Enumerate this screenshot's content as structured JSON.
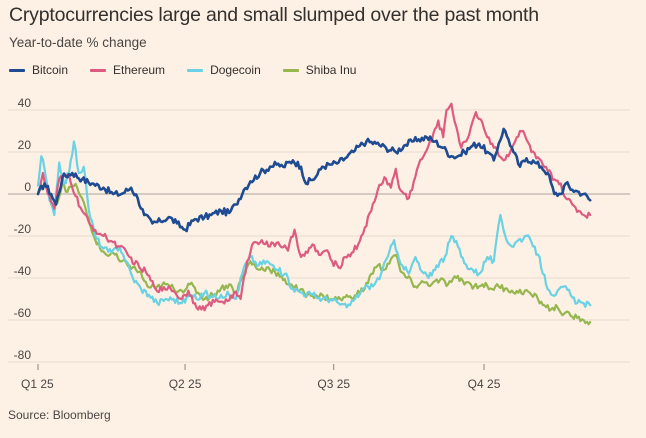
{
  "title": "Cryptocurrencies large and small slumped over the past month",
  "subtitle": "Year-to-date % change",
  "source": "Source: Bloomberg",
  "chart_data": {
    "type": "line",
    "title": "Cryptocurrencies large and small slumped over the past month",
    "ylabel": "Year-to-date % change",
    "ylim": [
      -80,
      40
    ],
    "xlim_days": [
      0,
      355
    ],
    "yticks": [
      40,
      20,
      0,
      -20,
      -40,
      -60,
      -80
    ],
    "xticks": [
      {
        "label": "Q1 25",
        "day": 0
      },
      {
        "label": "Q2 25",
        "day": 90
      },
      {
        "label": "Q3 25",
        "day": 181
      },
      {
        "label": "Q4 25",
        "day": 273
      }
    ],
    "grid": true,
    "legend_position": "top-left",
    "series": [
      {
        "name": "Bitcoin",
        "color": "#1e4b91",
        "points": [
          [
            0,
            0
          ],
          [
            4,
            5
          ],
          [
            8,
            0
          ],
          [
            11,
            -5
          ],
          [
            15,
            8
          ],
          [
            21,
            10
          ],
          [
            27,
            7
          ],
          [
            33,
            5
          ],
          [
            40,
            3
          ],
          [
            46,
            0
          ],
          [
            51,
            0
          ],
          [
            57,
            3
          ],
          [
            61,
            -2
          ],
          [
            65,
            -10
          ],
          [
            70,
            -14
          ],
          [
            75,
            -13
          ],
          [
            80,
            -11
          ],
          [
            85,
            -14
          ],
          [
            90,
            -17
          ],
          [
            96,
            -12
          ],
          [
            102,
            -11
          ],
          [
            106,
            -10
          ],
          [
            112,
            -8
          ],
          [
            117,
            -9
          ],
          [
            121,
            -5
          ],
          [
            126,
            2
          ],
          [
            130,
            6
          ],
          [
            136,
            10
          ],
          [
            142,
            13
          ],
          [
            146,
            14
          ],
          [
            150,
            13
          ],
          [
            156,
            16
          ],
          [
            161,
            13
          ],
          [
            164,
            5
          ],
          [
            170,
            8
          ],
          [
            174,
            13
          ],
          [
            179,
            14
          ],
          [
            184,
            15
          ],
          [
            188,
            17
          ],
          [
            193,
            20
          ],
          [
            197,
            23
          ],
          [
            201,
            25
          ],
          [
            207,
            24
          ],
          [
            213,
            22
          ],
          [
            219,
            20
          ],
          [
            224,
            23
          ],
          [
            229,
            25
          ],
          [
            233,
            26
          ],
          [
            238,
            27
          ],
          [
            243,
            25
          ],
          [
            248,
            22
          ],
          [
            253,
            18
          ],
          [
            257,
            18
          ],
          [
            261,
            20
          ],
          [
            266,
            23
          ],
          [
            270,
            24
          ],
          [
            275,
            20
          ],
          [
            279,
            16
          ],
          [
            282,
            24
          ],
          [
            285,
            31
          ],
          [
            288,
            26
          ],
          [
            291,
            20
          ],
          [
            295,
            13
          ],
          [
            299,
            17
          ],
          [
            304,
            15
          ],
          [
            308,
            13
          ],
          [
            312,
            10
          ],
          [
            316,
            0
          ],
          [
            320,
            0
          ],
          [
            323,
            5
          ],
          [
            327,
            2
          ],
          [
            331,
            1
          ],
          [
            334,
            0
          ],
          [
            338,
            -3
          ]
        ]
      },
      {
        "name": "Ethereum",
        "color": "#de5b80",
        "points": [
          [
            0,
            0
          ],
          [
            3,
            10
          ],
          [
            6,
            0
          ],
          [
            10,
            -7
          ],
          [
            13,
            7
          ],
          [
            19,
            9
          ],
          [
            23,
            -1
          ],
          [
            27,
            -8
          ],
          [
            32,
            -15
          ],
          [
            38,
            -19
          ],
          [
            42,
            -21
          ],
          [
            46,
            -23
          ],
          [
            50,
            -25
          ],
          [
            56,
            -30
          ],
          [
            62,
            -35
          ],
          [
            66,
            -37
          ],
          [
            71,
            -44
          ],
          [
            76,
            -46
          ],
          [
            80,
            -44
          ],
          [
            84,
            -47
          ],
          [
            88,
            -50
          ],
          [
            92,
            -46
          ],
          [
            96,
            -52
          ],
          [
            100,
            -55
          ],
          [
            104,
            -53
          ],
          [
            110,
            -51
          ],
          [
            116,
            -51
          ],
          [
            120,
            -47
          ],
          [
            124,
            -50
          ],
          [
            128,
            -32
          ],
          [
            132,
            -23
          ],
          [
            137,
            -22
          ],
          [
            142,
            -25
          ],
          [
            147,
            -23
          ],
          [
            153,
            -27
          ],
          [
            157,
            -17
          ],
          [
            161,
            -30
          ],
          [
            165,
            -28
          ],
          [
            168,
            -24
          ],
          [
            172,
            -29
          ],
          [
            176,
            -27
          ],
          [
            180,
            -32
          ],
          [
            184,
            -35
          ],
          [
            188,
            -30
          ],
          [
            192,
            -28
          ],
          [
            196,
            -24
          ],
          [
            200,
            -16
          ],
          [
            204,
            -8
          ],
          [
            208,
            2
          ],
          [
            212,
            8
          ],
          [
            216,
            3
          ],
          [
            219,
            12
          ],
          [
            221,
            3
          ],
          [
            224,
            0
          ],
          [
            227,
            -2
          ],
          [
            230,
            6
          ],
          [
            233,
            14
          ],
          [
            236,
            18
          ],
          [
            239,
            23
          ],
          [
            241,
            25
          ],
          [
            243,
            31
          ],
          [
            245,
            35
          ],
          [
            248,
            27
          ],
          [
            250,
            40
          ],
          [
            253,
            43
          ],
          [
            256,
            32
          ],
          [
            259,
            22
          ],
          [
            262,
            25
          ],
          [
            265,
            32
          ],
          [
            268,
            39
          ],
          [
            272,
            34
          ],
          [
            275,
            27
          ],
          [
            278,
            24
          ],
          [
            281,
            21
          ],
          [
            285,
            16
          ],
          [
            288,
            18
          ],
          [
            292,
            25
          ],
          [
            295,
            30
          ],
          [
            298,
            28
          ],
          [
            302,
            20
          ],
          [
            305,
            17
          ],
          [
            309,
            14
          ],
          [
            312,
            11
          ],
          [
            316,
            7
          ],
          [
            320,
            5
          ],
          [
            323,
            -2
          ],
          [
            327,
            -5
          ],
          [
            331,
            -8
          ],
          [
            334,
            -10
          ],
          [
            338,
            -10
          ]
        ]
      },
      {
        "name": "Dogecoin",
        "color": "#6ad2e4",
        "points": [
          [
            0,
            4
          ],
          [
            2,
            18
          ],
          [
            4,
            12
          ],
          [
            7,
            -3
          ],
          [
            10,
            -10
          ],
          [
            13,
            15
          ],
          [
            16,
            5
          ],
          [
            19,
            10
          ],
          [
            22,
            25
          ],
          [
            25,
            10
          ],
          [
            28,
            13
          ],
          [
            31,
            -7
          ],
          [
            35,
            -20
          ],
          [
            40,
            -26
          ],
          [
            45,
            -28
          ],
          [
            50,
            -25
          ],
          [
            54,
            -32
          ],
          [
            58,
            -40
          ],
          [
            63,
            -45
          ],
          [
            68,
            -48
          ],
          [
            73,
            -52
          ],
          [
            78,
            -50
          ],
          [
            83,
            -50
          ],
          [
            88,
            -52
          ],
          [
            93,
            -48
          ],
          [
            97,
            -50
          ],
          [
            102,
            -47
          ],
          [
            107,
            -49
          ],
          [
            112,
            -48
          ],
          [
            117,
            -48
          ],
          [
            121,
            -50
          ],
          [
            126,
            -35
          ],
          [
            130,
            -30
          ],
          [
            135,
            -34
          ],
          [
            140,
            -32
          ],
          [
            146,
            -36
          ],
          [
            151,
            -38
          ],
          [
            156,
            -45
          ],
          [
            162,
            -47
          ],
          [
            168,
            -48
          ],
          [
            174,
            -50
          ],
          [
            179,
            -50
          ],
          [
            184,
            -52
          ],
          [
            189,
            -54
          ],
          [
            194,
            -50
          ],
          [
            198,
            -46
          ],
          [
            202,
            -44
          ],
          [
            206,
            -43
          ],
          [
            210,
            -38
          ],
          [
            214,
            -30
          ],
          [
            218,
            -22
          ],
          [
            220,
            -28
          ],
          [
            223,
            -34
          ],
          [
            227,
            -38
          ],
          [
            231,
            -30
          ],
          [
            234,
            -36
          ],
          [
            239,
            -40
          ],
          [
            244,
            -34
          ],
          [
            249,
            -30
          ],
          [
            253,
            -20
          ],
          [
            257,
            -25
          ],
          [
            261,
            -33
          ],
          [
            266,
            -36
          ],
          [
            270,
            -38
          ],
          [
            275,
            -30
          ],
          [
            279,
            -32
          ],
          [
            283,
            -10
          ],
          [
            286,
            -20
          ],
          [
            290,
            -25
          ],
          [
            294,
            -22
          ],
          [
            299,
            -20
          ],
          [
            303,
            -25
          ],
          [
            307,
            -30
          ],
          [
            309,
            -38
          ],
          [
            313,
            -46
          ],
          [
            317,
            -48
          ],
          [
            322,
            -44
          ],
          [
            326,
            -48
          ],
          [
            330,
            -52
          ],
          [
            334,
            -52
          ],
          [
            338,
            -53
          ]
        ]
      },
      {
        "name": "Shiba Inu",
        "color": "#96b74f",
        "points": [
          [
            0,
            0
          ],
          [
            3,
            4
          ],
          [
            6,
            2
          ],
          [
            9,
            -6
          ],
          [
            12,
            -4
          ],
          [
            15,
            6
          ],
          [
            18,
            1
          ],
          [
            21,
            4
          ],
          [
            24,
            3
          ],
          [
            27,
            -2
          ],
          [
            30,
            -10
          ],
          [
            33,
            -18
          ],
          [
            38,
            -26
          ],
          [
            42,
            -29
          ],
          [
            46,
            -28
          ],
          [
            50,
            -32
          ],
          [
            56,
            -34
          ],
          [
            62,
            -37
          ],
          [
            67,
            -44
          ],
          [
            72,
            -45
          ],
          [
            78,
            -43
          ],
          [
            83,
            -45
          ],
          [
            88,
            -46
          ],
          [
            93,
            -43
          ],
          [
            98,
            -47
          ],
          [
            102,
            -50
          ],
          [
            107,
            -48
          ],
          [
            112,
            -45
          ],
          [
            117,
            -43
          ],
          [
            121,
            -47
          ],
          [
            126,
            -38
          ],
          [
            130,
            -32
          ],
          [
            135,
            -36
          ],
          [
            140,
            -35
          ],
          [
            145,
            -37
          ],
          [
            150,
            -41
          ],
          [
            155,
            -43
          ],
          [
            160,
            -46
          ],
          [
            165,
            -48
          ],
          [
            170,
            -48
          ],
          [
            175,
            -49
          ],
          [
            180,
            -50
          ],
          [
            185,
            -50
          ],
          [
            190,
            -49
          ],
          [
            195,
            -48
          ],
          [
            200,
            -45
          ],
          [
            204,
            -38
          ],
          [
            208,
            -34
          ],
          [
            212,
            -36
          ],
          [
            216,
            -31
          ],
          [
            219,
            -29
          ],
          [
            222,
            -37
          ],
          [
            226,
            -40
          ],
          [
            231,
            -44
          ],
          [
            236,
            -42
          ],
          [
            241,
            -43
          ],
          [
            246,
            -41
          ],
          [
            251,
            -43
          ],
          [
            256,
            -40
          ],
          [
            262,
            -42
          ],
          [
            267,
            -44
          ],
          [
            272,
            -43
          ],
          [
            277,
            -45
          ],
          [
            282,
            -44
          ],
          [
            286,
            -45
          ],
          [
            290,
            -46
          ],
          [
            294,
            -47
          ],
          [
            298,
            -46
          ],
          [
            302,
            -48
          ],
          [
            306,
            -50
          ],
          [
            310,
            -53
          ],
          [
            314,
            -55
          ],
          [
            318,
            -54
          ],
          [
            322,
            -57
          ],
          [
            326,
            -58
          ],
          [
            330,
            -59
          ],
          [
            334,
            -60
          ],
          [
            338,
            -61
          ]
        ]
      }
    ]
  }
}
